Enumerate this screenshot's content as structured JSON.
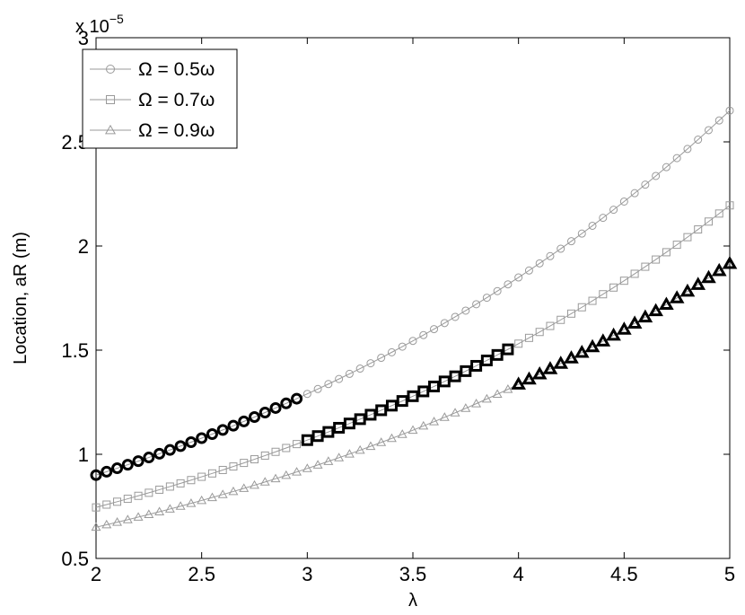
{
  "chart_data": {
    "type": "line",
    "xlabel": "λ",
    "ylabel": "Location, aR (m)",
    "y_multiplier_label": "x 10",
    "y_multiplier_exponent": "−5",
    "xlim": [
      2,
      5
    ],
    "ylim": [
      0.5,
      3
    ],
    "x_ticks": [
      2,
      2.5,
      3,
      3.5,
      4,
      4.5,
      5
    ],
    "x_tick_labels": [
      "2",
      "2.5",
      "3",
      "3.5",
      "4",
      "4.5",
      "5"
    ],
    "y_ticks": [
      0.5,
      1,
      1.5,
      2,
      2.5,
      3
    ],
    "y_tick_labels": [
      "0.5",
      "1",
      "1.5",
      "2",
      "2.5",
      "3"
    ],
    "grid": false,
    "legend_position": "top-left",
    "x_step": 0.05,
    "series": [
      {
        "name": "Ω = 0.5ω",
        "marker": "circle",
        "color": "#9a9a9a",
        "start": 0.9,
        "end": 2.65,
        "highlight_range": [
          2.0,
          2.95
        ],
        "highlight_color": "#000000"
      },
      {
        "name": "Ω = 0.7ω",
        "marker": "square",
        "color": "#9a9a9a",
        "start": 0.745,
        "end": 2.195,
        "highlight_range": [
          3.0,
          3.95
        ],
        "highlight_color": "#000000"
      },
      {
        "name": "Ω = 0.9ω",
        "marker": "triangle",
        "color": "#9a9a9a",
        "start": 0.65,
        "end": 1.915,
        "highlight_range": [
          4.0,
          5.0
        ],
        "highlight_color": "#000000"
      }
    ]
  }
}
